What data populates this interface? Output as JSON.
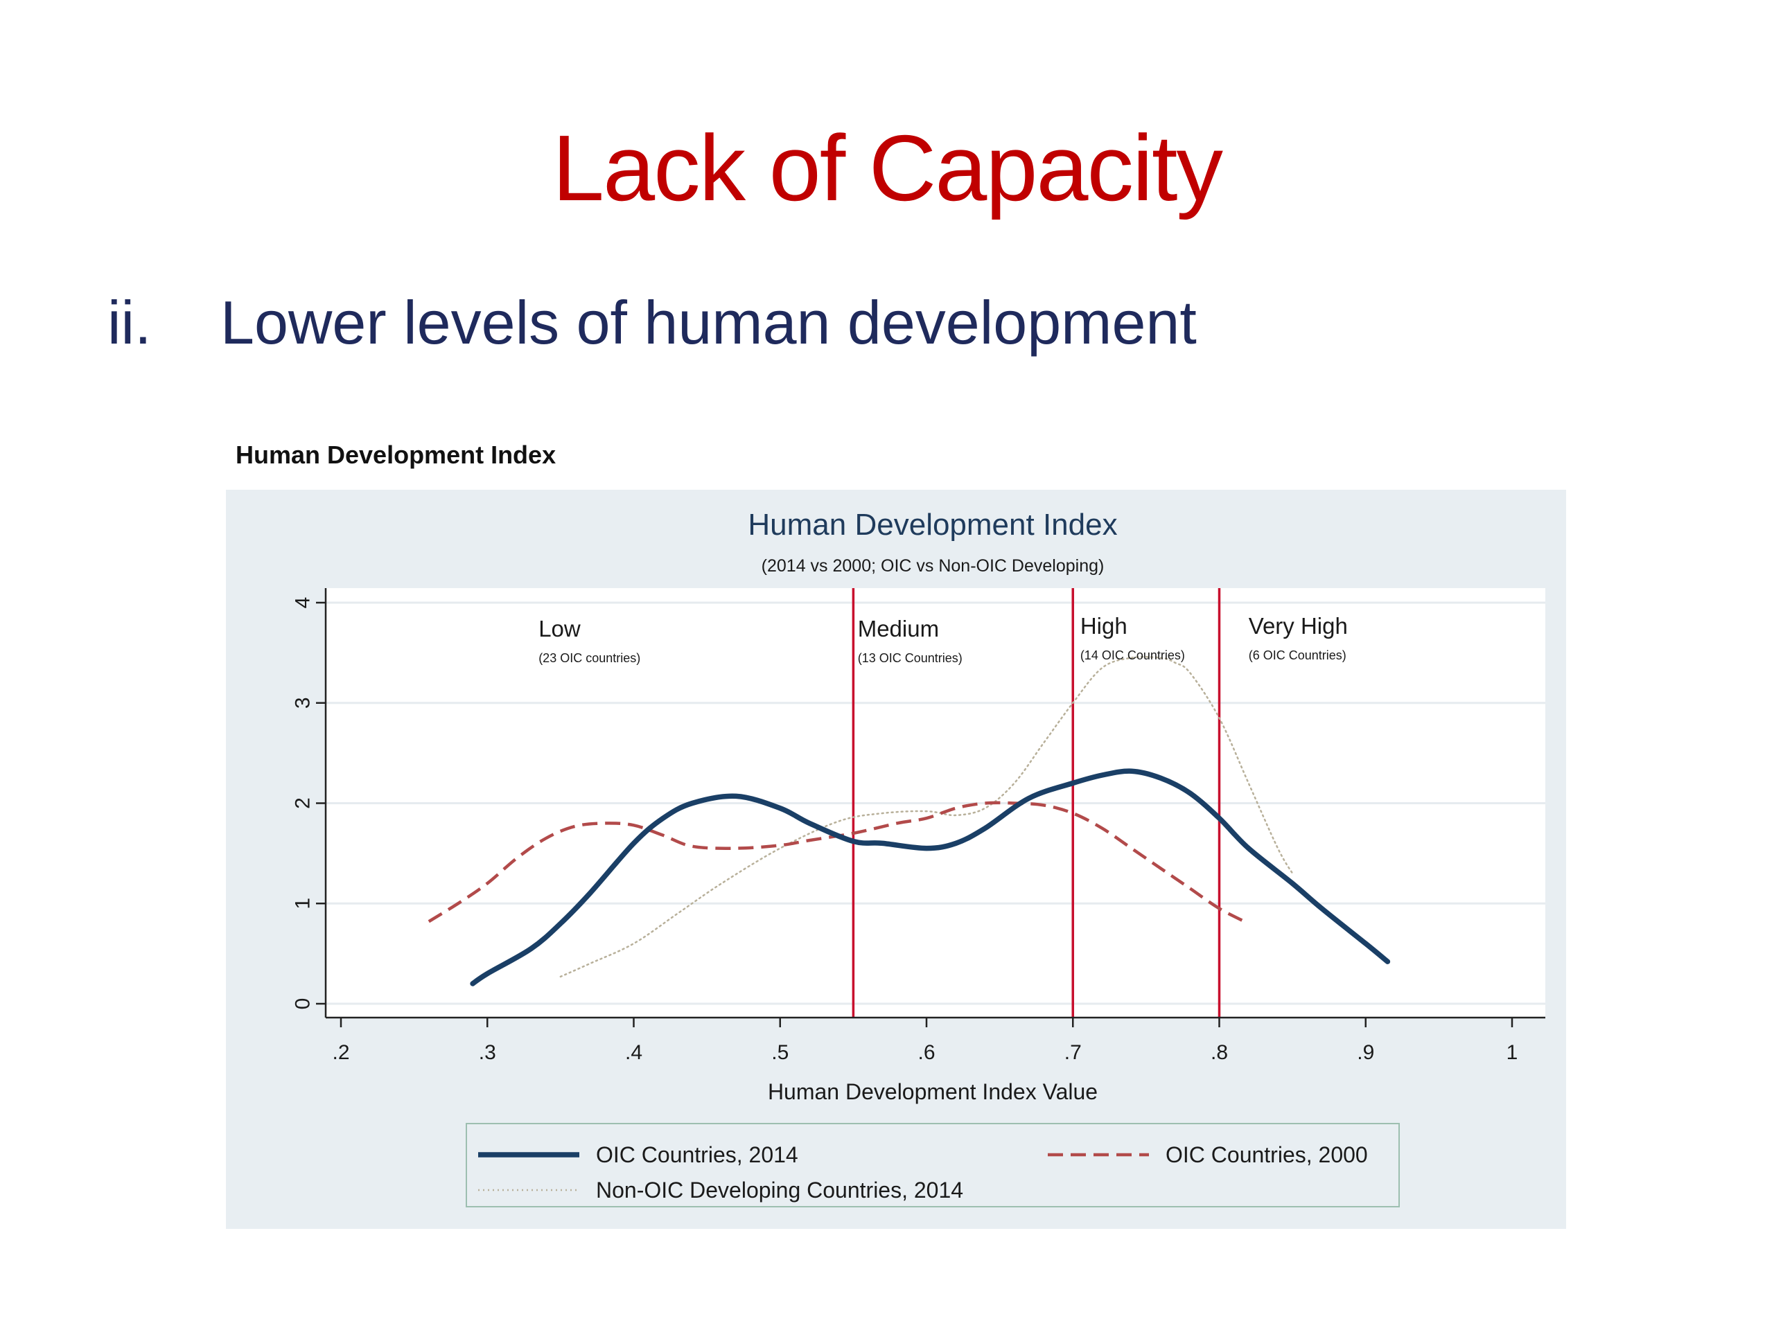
{
  "slide": {
    "title": "Lack of Capacity",
    "title_color": "#c00000",
    "bullet_number": "ii.",
    "bullet_text": "Lower levels of human development",
    "bullet_color": "#1f2a5c"
  },
  "figure_caption": "Human Development Index",
  "chart_data": {
    "type": "line",
    "title": "Human Development Index",
    "subtitle": "(2014 vs 2000; OIC vs Non-OIC Developing)",
    "xlabel": "Human Development Index Value",
    "ylabel": "",
    "xlim": [
      0.2,
      1.0
    ],
    "ylim": [
      0,
      4
    ],
    "xticks": [
      {
        "value": 0.2,
        "label": ".2"
      },
      {
        "value": 0.3,
        "label": ".3"
      },
      {
        "value": 0.4,
        "label": ".4"
      },
      {
        "value": 0.5,
        "label": ".5"
      },
      {
        "value": 0.6,
        "label": ".6"
      },
      {
        "value": 0.7,
        "label": ".7"
      },
      {
        "value": 0.8,
        "label": ".8"
      },
      {
        "value": 0.9,
        "label": ".9"
      },
      {
        "value": 1.0,
        "label": "1"
      }
    ],
    "yticks": [
      {
        "value": 0,
        "label": "0"
      },
      {
        "value": 1,
        "label": "1"
      },
      {
        "value": 2,
        "label": "2"
      },
      {
        "value": 3,
        "label": "3"
      },
      {
        "value": 4,
        "label": "4"
      }
    ],
    "grid": true,
    "legend_position": "bottom",
    "colors": {
      "panel_background": "#e8eef2",
      "plot_background": "#ffffff",
      "gridline": "#e6ebef",
      "axis": "#222222",
      "text": "#1a1a1a",
      "title": "#1f3b5c",
      "threshold": "#c8102e",
      "legend_border": "#9dbfb0"
    },
    "series": [
      {
        "name": "OIC Countries, 2014",
        "color": "#1a3f66",
        "style": "solid",
        "x": [
          0.29,
          0.3,
          0.33,
          0.35,
          0.37,
          0.4,
          0.42,
          0.44,
          0.47,
          0.5,
          0.52,
          0.55,
          0.57,
          0.6,
          0.62,
          0.64,
          0.67,
          0.7,
          0.72,
          0.74,
          0.76,
          0.78,
          0.8,
          0.82,
          0.85,
          0.87,
          0.9,
          0.915
        ],
        "y": [
          0.2,
          0.3,
          0.55,
          0.8,
          1.1,
          1.6,
          1.85,
          2.0,
          2.07,
          1.95,
          1.8,
          1.62,
          1.6,
          1.55,
          1.6,
          1.75,
          2.05,
          2.2,
          2.28,
          2.32,
          2.25,
          2.1,
          1.85,
          1.55,
          1.2,
          0.95,
          0.6,
          0.42
        ]
      },
      {
        "name": "OIC Countries, 2000",
        "color": "#b24a4a",
        "style": "dashed",
        "x": [
          0.26,
          0.28,
          0.3,
          0.32,
          0.34,
          0.36,
          0.38,
          0.4,
          0.42,
          0.44,
          0.47,
          0.5,
          0.52,
          0.55,
          0.58,
          0.6,
          0.62,
          0.64,
          0.66,
          0.68,
          0.7,
          0.72,
          0.74,
          0.76,
          0.78,
          0.8,
          0.82
        ],
        "y": [
          0.82,
          1.0,
          1.2,
          1.45,
          1.65,
          1.77,
          1.8,
          1.78,
          1.68,
          1.57,
          1.55,
          1.58,
          1.63,
          1.7,
          1.8,
          1.85,
          1.95,
          2.0,
          2.0,
          1.98,
          1.9,
          1.75,
          1.55,
          1.35,
          1.15,
          0.95,
          0.8
        ]
      },
      {
        "name": "Non-OIC Developing Countries, 2014",
        "color": "#b8b09a",
        "style": "dotted",
        "x": [
          0.35,
          0.37,
          0.4,
          0.43,
          0.46,
          0.5,
          0.54,
          0.57,
          0.6,
          0.62,
          0.64,
          0.66,
          0.68,
          0.7,
          0.72,
          0.74,
          0.76,
          0.77,
          0.78,
          0.8,
          0.82,
          0.84,
          0.85
        ],
        "y": [
          0.27,
          0.4,
          0.6,
          0.9,
          1.2,
          1.55,
          1.82,
          1.9,
          1.92,
          1.88,
          1.95,
          2.2,
          2.6,
          3.0,
          3.35,
          3.45,
          3.45,
          3.4,
          3.3,
          2.85,
          2.2,
          1.55,
          1.3
        ]
      }
    ],
    "thresholds": [
      {
        "x": 0.55,
        "label": "Medium",
        "sublabel": "(13 OIC Countries)"
      },
      {
        "x": 0.7,
        "label": "High",
        "sublabel": "(14 OIC Countries)"
      },
      {
        "x": 0.8,
        "label": "Very High",
        "sublabel": "(6 OIC Countries)"
      }
    ],
    "region_labels": [
      {
        "x": 0.335,
        "label": "Low",
        "sublabel": "(23 OIC countries)"
      },
      {
        "x": 0.553,
        "label": "Medium",
        "sublabel": "(13 OIC Countries)"
      },
      {
        "x": 0.705,
        "label": "High",
        "sublabel": "(14 OIC Countries)"
      },
      {
        "x": 0.82,
        "label": "Very High",
        "sublabel": "(6 OIC Countries)"
      }
    ]
  }
}
